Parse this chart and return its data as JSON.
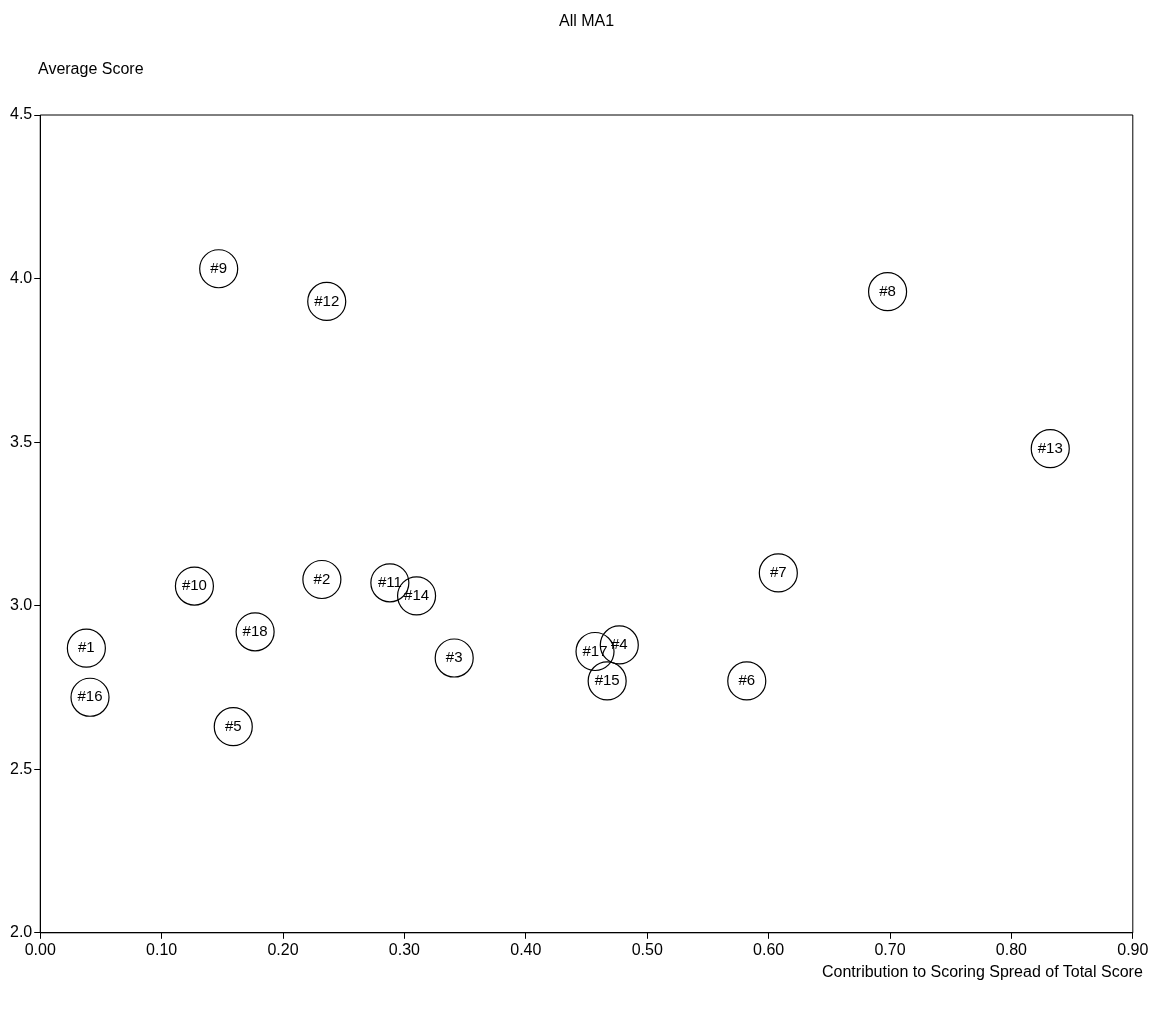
{
  "chart_data": {
    "type": "scatter",
    "title": "All MA1",
    "xlabel": "Contribution to Scoring Spread of Total Score",
    "ylabel": "Average Score",
    "xlim": [
      0,
      0.9
    ],
    "xticks": [
      {
        "value": 0,
        "label": "0.00"
      },
      {
        "value": 0.1,
        "label": "0.10"
      },
      {
        "value": 0.2,
        "label": "0.20"
      },
      {
        "value": 0.3,
        "label": "0.30"
      },
      {
        "value": 0.4,
        "label": "0.40"
      },
      {
        "value": 0.5,
        "label": "0.50"
      },
      {
        "value": 0.6,
        "label": "0.60"
      },
      {
        "value": 0.7,
        "label": "0.70"
      },
      {
        "value": 0.8,
        "label": "0.80"
      },
      {
        "value": 0.9,
        "label": "0.90"
      }
    ],
    "ylim": [
      2,
      4.5
    ],
    "yticks": [
      {
        "value": 2,
        "label": "2.0"
      },
      {
        "value": 2.5,
        "label": "2.5"
      },
      {
        "value": 3,
        "label": "3.0"
      },
      {
        "value": 3.5,
        "label": "3.5"
      },
      {
        "value": 4,
        "label": "4.0"
      },
      {
        "value": 4.5,
        "label": "4.5"
      }
    ],
    "grid": false,
    "legend": false,
    "marker": "circle",
    "series": [
      {
        "name": "#1",
        "color": "#000000",
        "x": [
          0.038
        ],
        "values": [
          2.87
        ]
      },
      {
        "name": "#2",
        "color": "#000000",
        "x": [
          0.232
        ],
        "values": [
          3.08
        ]
      },
      {
        "name": "#3",
        "color": "#000000",
        "x": [
          0.341
        ],
        "values": [
          2.84
        ]
      },
      {
        "name": "#4",
        "color": "#000000",
        "x": [
          0.477
        ],
        "values": [
          2.88
        ]
      },
      {
        "name": "#5",
        "color": "#000000",
        "x": [
          0.159
        ],
        "values": [
          2.63
        ]
      },
      {
        "name": "#6",
        "color": "#000000",
        "x": [
          0.582
        ],
        "values": [
          2.77
        ]
      },
      {
        "name": "#7",
        "color": "#000000",
        "x": [
          0.608
        ],
        "values": [
          3.1
        ]
      },
      {
        "name": "#8",
        "color": "#000000",
        "x": [
          0.698
        ],
        "values": [
          3.96
        ]
      },
      {
        "name": "#9",
        "color": "#000000",
        "x": [
          0.147
        ],
        "values": [
          4.03
        ]
      },
      {
        "name": "#10",
        "color": "#000000",
        "x": [
          0.127
        ],
        "values": [
          3.06
        ]
      },
      {
        "name": "#11",
        "color": "#000000",
        "x": [
          0.288
        ],
        "values": [
          3.07
        ]
      },
      {
        "name": "#12",
        "color": "#000000",
        "x": [
          0.236
        ],
        "values": [
          3.93
        ]
      },
      {
        "name": "#13",
        "color": "#000000",
        "x": [
          0.832
        ],
        "values": [
          3.48
        ]
      },
      {
        "name": "#14",
        "color": "#000000",
        "x": [
          0.31
        ],
        "values": [
          3.03
        ]
      },
      {
        "name": "#15",
        "color": "#000000",
        "x": [
          0.467
        ],
        "values": [
          2.77
        ]
      },
      {
        "name": "#16",
        "color": "#000000",
        "x": [
          0.041
        ],
        "values": [
          2.72
        ]
      },
      {
        "name": "#17",
        "color": "#000000",
        "x": [
          0.457
        ],
        "values": [
          2.86
        ]
      },
      {
        "name": "#18",
        "color": "#000000",
        "x": [
          0.177
        ],
        "values": [
          2.92
        ]
      }
    ]
  }
}
